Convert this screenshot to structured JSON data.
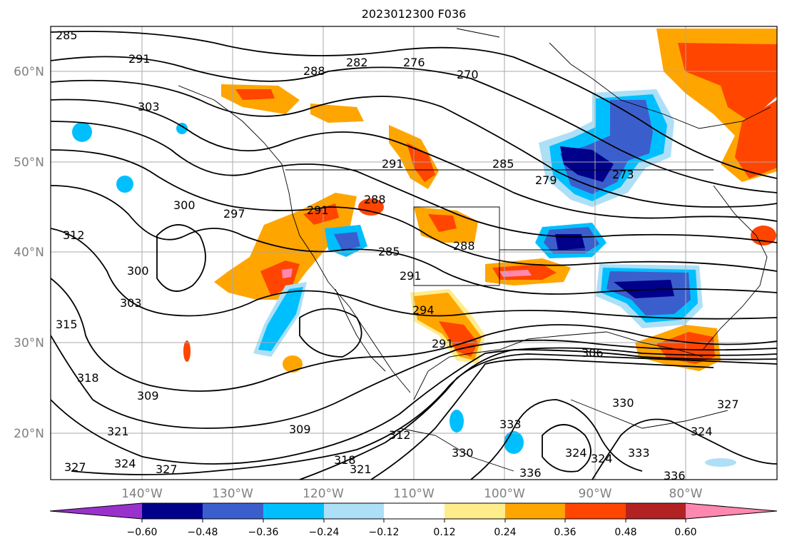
{
  "title": "2023012300 F036",
  "map": {
    "lat_labels": [
      "60°N",
      "50°N",
      "40°N",
      "30°N",
      "20°N"
    ],
    "lon_labels": [
      "140°W",
      "130°W",
      "120°W",
      "110°W",
      "100°W",
      "90°W",
      "80°W"
    ],
    "grid": true
  },
  "contour_labels": [
    "285",
    "291",
    "288",
    "282",
    "276",
    "270",
    "303",
    "291",
    "285",
    "279",
    "273",
    "300",
    "297",
    "291",
    "288",
    "312",
    "300",
    "303",
    "285",
    "291",
    "288",
    "294",
    "291",
    "315",
    "318",
    "309",
    "306",
    "321",
    "324",
    "327",
    "309",
    "312",
    "318",
    "321",
    "330",
    "324",
    "327",
    "330",
    "333",
    "333",
    "336",
    "336",
    "327",
    "324",
    "324"
  ],
  "colorbar": {
    "extend": "both",
    "ticks": [
      "−0.60",
      "−0.48",
      "−0.36",
      "−0.24",
      "−0.12",
      "0.12",
      "0.24",
      "0.36",
      "0.48",
      "0.60"
    ],
    "colors": {
      "lt_m060": "#9932CC",
      "m060_m048": "#00008B",
      "m048_m036": "#3A5FCD",
      "m036_m024": "#00BFFF",
      "m024_m012": "#ADE0F7",
      "m012_p012": "#FFFFFF",
      "p012_p024": "#FFEC8B",
      "p024_p036": "#FFA500",
      "p036_p048": "#FF4500",
      "p048_p060": "#B22222",
      "gt_p060": "#FF88B0"
    }
  }
}
